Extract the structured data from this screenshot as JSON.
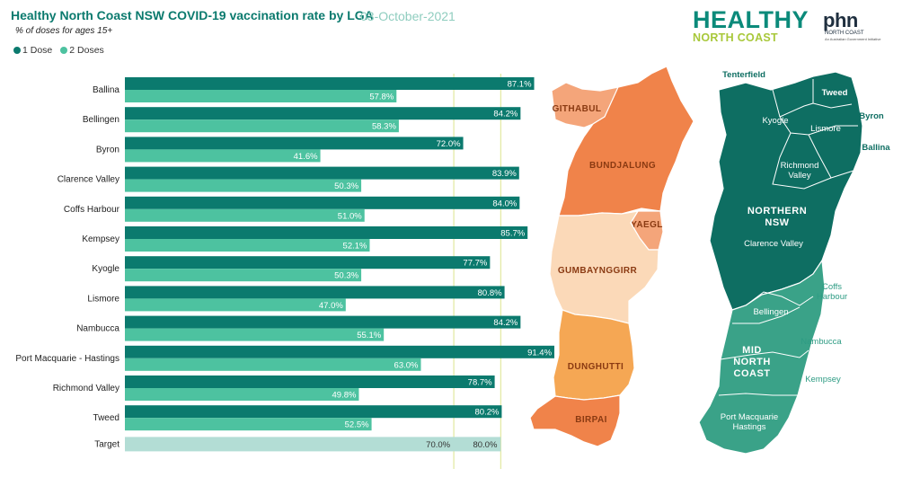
{
  "header": {
    "title": "Healthy North Coast NSW COVID-19 vaccination rate by LGA",
    "date": "03-October-2021",
    "subtitle": "% of doses for ages 15+"
  },
  "legend": [
    {
      "label": "1 Dose",
      "color": "#0b7a6e"
    },
    {
      "label": "2 Doses",
      "color": "#4dc2a0"
    }
  ],
  "logos": {
    "healthy_line1": "HEALTHY",
    "healthy_line2": "NORTH COAST",
    "phn_main": "phn",
    "phn_sub": "NORTH COAST",
    "phn_gov": "An Australian Government Initiative"
  },
  "chart_data": {
    "type": "bar",
    "orientation": "horizontal",
    "categories": [
      "Ballina",
      "Bellingen",
      "Byron",
      "Clarence Valley",
      "Coffs Harbour",
      "Kempsey",
      "Kyogle",
      "Lismore",
      "Nambucca",
      "Port Macquarie - Hastings",
      "Richmond Valley",
      "Tweed"
    ],
    "series": [
      {
        "name": "1 Dose",
        "color": "#0b7a6e",
        "values": [
          87.1,
          84.2,
          72.0,
          83.9,
          84.0,
          85.7,
          77.7,
          80.8,
          84.2,
          91.4,
          78.7,
          80.2
        ]
      },
      {
        "name": "2 Doses",
        "color": "#4dc2a0",
        "values": [
          57.8,
          58.3,
          41.6,
          50.3,
          51.0,
          52.1,
          50.3,
          47.0,
          55.1,
          63.0,
          49.8,
          52.5
        ]
      }
    ],
    "target": {
      "label": "Target",
      "values": [
        70.0,
        80.0
      ],
      "color": "#b3ddd5",
      "line_color": "#e3eaa6"
    },
    "value_format": "%",
    "xlim": [
      0,
      100
    ]
  },
  "maps": {
    "aboriginal_nations": [
      {
        "name": "GITHABUL",
        "color": "#f4a57a"
      },
      {
        "name": "BUNDJALUNG",
        "color": "#f0834a"
      },
      {
        "name": "YAEGL",
        "color": "#f4a57a"
      },
      {
        "name": "GUMBAYNGGIRR",
        "color": "#fbd9b8"
      },
      {
        "name": "DUNGHUTTI",
        "color": "#f5a754"
      },
      {
        "name": "BIRPAI",
        "color": "#f0834a"
      }
    ],
    "regions": [
      {
        "name": "NORTHERN\nNSW",
        "color": "#0e6e62"
      },
      {
        "name": "MID\nNORTH\nCOAST",
        "color": "#3aa288"
      }
    ],
    "lga_labels": [
      "Tenterfield",
      "Tweed",
      "Kyogle",
      "Byron",
      "Lismore",
      "Ballina",
      "Richmond\nValley",
      "Clarence Valley",
      "Coffs\nHarbour",
      "Bellingen",
      "Nambucca",
      "Kempsey",
      "Port Macquarie\nHastings"
    ]
  }
}
